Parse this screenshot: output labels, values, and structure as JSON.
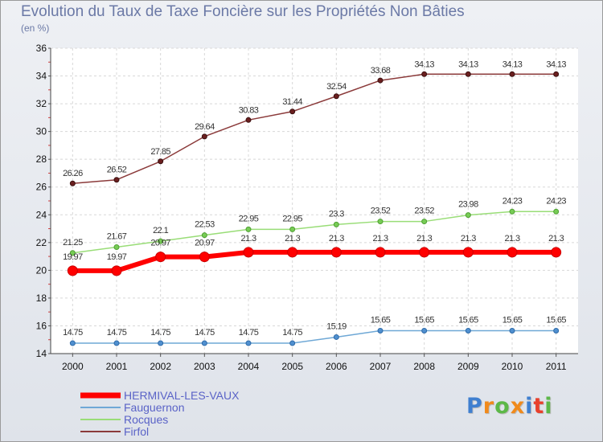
{
  "chart_data": {
    "type": "line",
    "title": "Evolution du Taux de Taxe Foncière sur les Propriétés Non Bâties",
    "subtitle": "(en %)",
    "categories": [
      "2000",
      "2001",
      "2002",
      "2003",
      "2004",
      "2005",
      "2006",
      "2007",
      "2008",
      "2009",
      "2010",
      "2011"
    ],
    "ylim": [
      14,
      36
    ],
    "yticks": [
      "14",
      "16",
      "18",
      "20",
      "22",
      "24",
      "26",
      "28",
      "30",
      "32",
      "34",
      "36"
    ],
    "grid": true,
    "legend_position": "bottom-left",
    "series": [
      {
        "name": "Firfol",
        "color": "#8b3a3a",
        "values": [
          26.26,
          26.52,
          27.85,
          29.64,
          30.83,
          31.44,
          32.54,
          33.68,
          34.13,
          34.13,
          34.13,
          34.13
        ],
        "labels": [
          "26.26",
          "26.52",
          "27.85",
          "29.64",
          "30.83",
          "31.44",
          "32.54",
          "33.68",
          "34.13",
          "34.13",
          "34.13",
          "34.13"
        ]
      },
      {
        "name": "Rocques",
        "color": "#99dd77",
        "values": [
          21.25,
          21.67,
          22.1,
          22.53,
          22.95,
          22.95,
          23.3,
          23.52,
          23.52,
          23.98,
          24.23,
          24.23
        ],
        "labels": [
          "21.25",
          "21.67",
          "22.1",
          "22.53",
          "22.95",
          "22.95",
          "23.3",
          "23.52",
          "23.52",
          "23.98",
          "24.23",
          "24.23"
        ]
      },
      {
        "name": "HERMIVAL-LES-VAUX",
        "color": "#ff0000",
        "values": [
          19.97,
          19.97,
          20.97,
          20.97,
          21.3,
          21.3,
          21.3,
          21.3,
          21.3,
          21.3,
          21.3,
          21.3
        ],
        "labels": [
          "19.97",
          "19.97",
          "20.97",
          "20.97",
          "21.3",
          "21.3",
          "21.3",
          "21.3",
          "21.3",
          "21.3",
          "21.3",
          "21.3"
        ]
      },
      {
        "name": "Fauguernon",
        "color": "#6fa8d6",
        "values": [
          14.75,
          14.75,
          14.75,
          14.75,
          14.75,
          14.75,
          15.19,
          15.65,
          15.65,
          15.65,
          15.65,
          15.65
        ],
        "labels": [
          "14.75",
          "14.75",
          "14.75",
          "14.75",
          "14.75",
          "14.75",
          "15.19",
          "15.65",
          "15.65",
          "15.65",
          "15.65",
          "15.65"
        ]
      }
    ],
    "legend_order": [
      "HERMIVAL-LES-VAUX",
      "Fauguernon",
      "Rocques",
      "Firfol"
    ]
  },
  "logo": {
    "letters": [
      "P",
      "r",
      "o",
      "x",
      "i",
      "t",
      "i"
    ],
    "colors": [
      "#3f7fd0",
      "#f08a1c",
      "#5cb848",
      "#f08a1c",
      "#3f7fd0",
      "#e8402c",
      "#5cb848"
    ]
  }
}
